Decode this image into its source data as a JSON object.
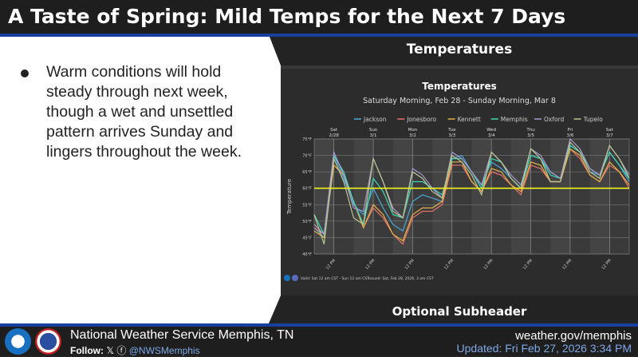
{
  "title": "A Taste of Spring: Mild Temps for the Next 7 Days",
  "bullet": "Warm conditions will hold steady through next week, though a wet and unsettled pattern arrives Sunday and lingers throughout the week.",
  "panel_header": "Temperatures",
  "subheader": "Optional Subheader",
  "footer": {
    "office": "National Weather Service Memphis, TN",
    "follow_label": "Follow:",
    "x_icon": "x-logo-icon",
    "fb_icon": "facebook-icon",
    "handle": "@NWSMemphis",
    "website": "weather.gov/memphis",
    "updated": "Updated: Fri Feb 27, 2026 3:34 PM"
  },
  "chart_data": {
    "type": "line",
    "title": "Temperatures",
    "subtitle": "Saturday Morning, Feb 28 - Sunday Morning, Mar 8",
    "ylabel": "Temperature",
    "ylim": [
      40,
      75
    ],
    "yticks": [
      "40°F",
      "45°F",
      "50°F",
      "55°F",
      "60°F",
      "65°F",
      "70°F",
      "75°F"
    ],
    "x_hours_from_start": [
      0,
      6,
      12,
      18,
      24,
      30,
      36,
      42,
      48,
      54,
      60,
      66,
      72,
      78,
      84,
      90,
      96,
      102,
      108,
      114,
      120,
      126,
      132,
      138,
      144,
      150,
      156,
      162,
      168,
      174,
      180,
      186,
      192
    ],
    "day_labels": [
      [
        "Sat",
        "2/28"
      ],
      [
        "Sun",
        "3/1"
      ],
      [
        "Mon",
        "3/2"
      ],
      [
        "Tue",
        "3/3"
      ],
      [
        "Wed",
        "3/4"
      ],
      [
        "Thu",
        "3/5"
      ],
      [
        "Fri",
        "3/6"
      ],
      [
        "Sat",
        "3/7"
      ]
    ],
    "xtick_label": "12 PM",
    "threshold": {
      "value": 60,
      "color": "#f2f21a"
    },
    "series": [
      {
        "name": "Jackson",
        "color": "#4aa8d8",
        "values": [
          48,
          45,
          70,
          63,
          55,
          52,
          60,
          54,
          49,
          47,
          56,
          58,
          57,
          56,
          69,
          70,
          65,
          61,
          68,
          66,
          63,
          60,
          70,
          69,
          65,
          63,
          73,
          71,
          65,
          64,
          71,
          67,
          62
        ]
      },
      {
        "name": "Jonesboro",
        "color": "#e8736c",
        "values": [
          48,
          46,
          67,
          64,
          56,
          48,
          54,
          51,
          46,
          43,
          51,
          53,
          53,
          55,
          67,
          67,
          62,
          59,
          65,
          64,
          61,
          58,
          67,
          66,
          62,
          62,
          72,
          69,
          64,
          62,
          67,
          65,
          60
        ]
      },
      {
        "name": "Kennett",
        "color": "#e8b04a",
        "values": [
          47,
          45,
          67,
          64,
          56,
          48,
          55,
          52,
          46,
          44,
          52,
          54,
          54,
          56,
          68,
          68,
          62,
          59,
          66,
          65,
          61,
          59,
          68,
          67,
          62,
          62,
          72,
          70,
          64,
          62,
          68,
          65,
          61
        ]
      },
      {
        "name": "Memphis",
        "color": "#3fd8b8",
        "values": [
          52,
          46,
          70,
          65,
          56,
          49,
          63,
          59,
          52,
          51,
          62,
          62,
          60,
          58,
          69,
          69,
          65,
          60,
          69,
          68,
          63,
          60,
          70,
          69,
          64,
          63,
          73,
          71,
          66,
          64,
          71,
          67,
          63
        ]
      },
      {
        "name": "Oxford",
        "color": "#a89ad0",
        "values": [
          49,
          46,
          71,
          64,
          54,
          53,
          69,
          62,
          54,
          51,
          66,
          64,
          60,
          57,
          71,
          69,
          65,
          61,
          71,
          68,
          64,
          61,
          72,
          70,
          65,
          63,
          75,
          72,
          66,
          64,
          73,
          69,
          64
        ]
      },
      {
        "name": "Tupelo",
        "color": "#b8c890",
        "values": [
          52,
          43,
          69,
          62,
          51,
          49,
          69,
          62,
          53,
          51,
          65,
          63,
          59,
          57,
          70,
          68,
          64,
          58,
          71,
          68,
          63,
          60,
          72,
          69,
          62,
          62,
          74,
          71,
          65,
          63,
          73,
          69,
          63
        ]
      }
    ],
    "legend_placement": "top-center",
    "valid_text": "Valid: Sat 12 am CST - Sun 12 am CST",
    "issued_text": "Issued: Sat, Feb 28, 2026, 3 am CST"
  }
}
